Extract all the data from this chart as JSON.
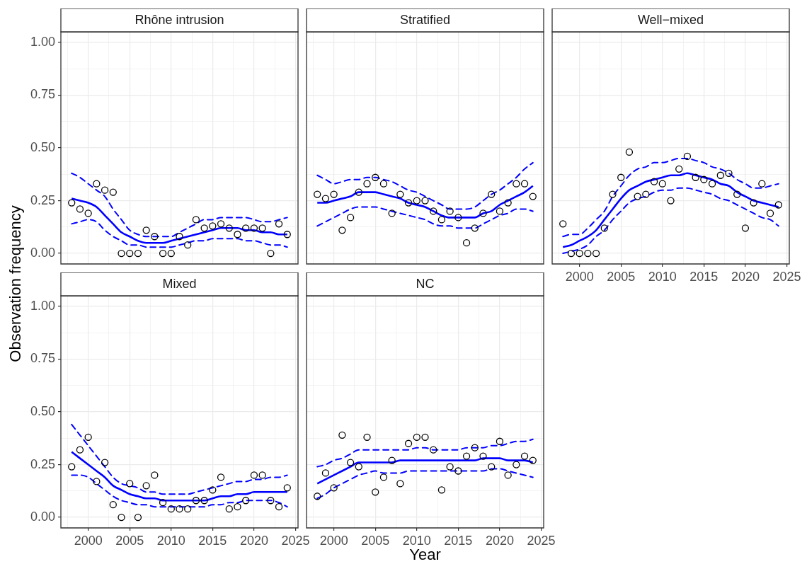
{
  "chart_data": [
    {
      "type": "scatter",
      "title": "Rhône intrusion",
      "ylabel": "Observation frequency",
      "x": [
        1998,
        1999,
        2000,
        2001,
        2002,
        2003,
        2004,
        2005,
        2006,
        2007,
        2008,
        2009,
        2010,
        2011,
        2012,
        2013,
        2014,
        2015,
        2016,
        2017,
        2018,
        2019,
        2020,
        2021,
        2022,
        2023,
        2024
      ],
      "series": [
        {
          "type": "scatter",
          "color": "#000000",
          "marker": "circle",
          "values": [
            0.24,
            0.21,
            0.19,
            0.33,
            0.3,
            0.29,
            0,
            0,
            0,
            0.11,
            0.08,
            0,
            0,
            0.08,
            0.04,
            0.16,
            0.12,
            0.13,
            0.14,
            0.12,
            0.09,
            0.12,
            0.12,
            0.12,
            0,
            0.14,
            0.09
          ]
        },
        {
          "type": "line",
          "color": "#0000ff",
          "line_style": "solid",
          "values": [
            0.26,
            0.25,
            0.24,
            0.22,
            0.18,
            0.14,
            0.1,
            0.08,
            0.06,
            0.05,
            0.05,
            0.05,
            0.06,
            0.07,
            0.08,
            0.09,
            0.1,
            0.11,
            0.12,
            0.12,
            0.12,
            0.11,
            0.11,
            0.1,
            0.1,
            0.09,
            0.09
          ]
        },
        {
          "type": "line",
          "color": "#0000ff",
          "line_style": "dashed",
          "values": [
            0.38,
            0.36,
            0.33,
            0.3,
            0.27,
            0.21,
            0.16,
            0.11,
            0.09,
            0.08,
            0.08,
            0.08,
            0.08,
            0.1,
            0.12,
            0.14,
            0.16,
            0.16,
            0.17,
            0.17,
            0.17,
            0.17,
            0.16,
            0.15,
            0.15,
            0.16,
            0.17
          ]
        },
        {
          "type": "line",
          "color": "#0000ff",
          "line_style": "dashed",
          "values": [
            0.14,
            0.15,
            0.16,
            0.15,
            0.11,
            0.08,
            0.06,
            0.04,
            0.04,
            0.03,
            0.03,
            0.03,
            0.03,
            0.04,
            0.05,
            0.06,
            0.06,
            0.07,
            0.07,
            0.07,
            0.07,
            0.06,
            0.06,
            0.05,
            0.04,
            0.04,
            0.03
          ]
        }
      ],
      "xlim": [
        1996.7,
        2025.3
      ],
      "ylim": [
        -0.05,
        1.05
      ],
      "xticks": [
        {
          "value": 1997.5,
          "label": null
        },
        2000,
        {
          "value": 2002.5,
          "label": null
        },
        2005,
        {
          "value": 2007.5,
          "label": null
        },
        2010,
        {
          "value": 2012.5,
          "label": null
        },
        2015,
        {
          "value": 2017.5,
          "label": null
        },
        2020,
        {
          "value": 2022.5,
          "label": null
        },
        2025
      ],
      "yticks": [
        {
          "value": 0,
          "label": "0.00"
        },
        {
          "value": 0.125,
          "label": null
        },
        0.25,
        {
          "value": 0.375,
          "label": null
        },
        {
          "value": 0.5,
          "label": "0.50"
        },
        {
          "value": 0.625,
          "label": null
        },
        0.75,
        {
          "value": 0.875,
          "label": null
        },
        {
          "value": 1,
          "label": "1.00"
        }
      ],
      "grid": true,
      "tick_labels": "y"
    },
    {
      "type": "scatter",
      "title": "Stratified",
      "x": [
        1998,
        1999,
        2000,
        2001,
        2002,
        2003,
        2004,
        2005,
        2006,
        2007,
        2008,
        2009,
        2010,
        2011,
        2012,
        2013,
        2014,
        2015,
        2016,
        2017,
        2018,
        2019,
        2020,
        2021,
        2022,
        2023,
        2024
      ],
      "series": [
        {
          "type": "scatter",
          "color": "#000000",
          "marker": "circle",
          "values": [
            0.28,
            0.26,
            0.28,
            0.11,
            0.17,
            0.29,
            0.33,
            0.36,
            0.33,
            0.19,
            0.28,
            0.24,
            0.25,
            0.25,
            0.2,
            0.16,
            0.2,
            0.17,
            0.05,
            0.12,
            0.19,
            0.28,
            0.2,
            0.24,
            0.33,
            0.33,
            0.27
          ]
        },
        {
          "type": "line",
          "color": "#0000ff",
          "line_style": "solid",
          "values": [
            0.24,
            0.24,
            0.25,
            0.26,
            0.27,
            0.29,
            0.29,
            0.29,
            0.28,
            0.27,
            0.26,
            0.24,
            0.23,
            0.22,
            0.2,
            0.18,
            0.17,
            0.17,
            0.17,
            0.17,
            0.19,
            0.2,
            0.23,
            0.25,
            0.27,
            0.29,
            0.32
          ]
        },
        {
          "type": "line",
          "color": "#0000ff",
          "line_style": "dashed",
          "values": [
            0.37,
            0.35,
            0.33,
            0.34,
            0.35,
            0.35,
            0.36,
            0.36,
            0.35,
            0.34,
            0.32,
            0.3,
            0.29,
            0.27,
            0.25,
            0.23,
            0.21,
            0.21,
            0.21,
            0.22,
            0.25,
            0.28,
            0.3,
            0.33,
            0.36,
            0.4,
            0.43
          ]
        },
        {
          "type": "line",
          "color": "#0000ff",
          "line_style": "dashed",
          "values": [
            0.13,
            0.15,
            0.17,
            0.19,
            0.21,
            0.22,
            0.22,
            0.22,
            0.21,
            0.2,
            0.19,
            0.18,
            0.17,
            0.16,
            0.14,
            0.13,
            0.13,
            0.12,
            0.12,
            0.12,
            0.14,
            0.16,
            0.18,
            0.19,
            0.21,
            0.21,
            0.2
          ]
        }
      ],
      "xlim": [
        1996.7,
        2025.3
      ],
      "ylim": [
        -0.05,
        1.05
      ],
      "xticks": [
        {
          "value": 1997.5,
          "label": null
        },
        2000,
        {
          "value": 2002.5,
          "label": null
        },
        2005,
        {
          "value": 2007.5,
          "label": null
        },
        2010,
        {
          "value": 2012.5,
          "label": null
        },
        2015,
        {
          "value": 2017.5,
          "label": null
        },
        2020,
        {
          "value": 2022.5,
          "label": null
        },
        2025
      ],
      "yticks": [
        0,
        {
          "value": 0.125,
          "label": null
        },
        0.25,
        {
          "value": 0.375,
          "label": null
        },
        0.5,
        {
          "value": 0.625,
          "label": null
        },
        0.75,
        {
          "value": 0.875,
          "label": null
        },
        1
      ],
      "grid": true,
      "tick_labels": false
    },
    {
      "type": "scatter",
      "title": "Well−mixed",
      "x": [
        1998,
        1999,
        2000,
        2001,
        2002,
        2003,
        2004,
        2005,
        2006,
        2007,
        2008,
        2009,
        2010,
        2011,
        2012,
        2013,
        2014,
        2015,
        2016,
        2017,
        2018,
        2019,
        2020,
        2021,
        2022,
        2023,
        2024
      ],
      "series": [
        {
          "type": "scatter",
          "color": "#000000",
          "marker": "circle",
          "values": [
            0.14,
            0,
            0,
            0,
            0,
            0.12,
            0.28,
            0.36,
            0.48,
            0.27,
            0.28,
            0.34,
            0.33,
            0.25,
            0.4,
            0.46,
            0.36,
            0.35,
            0.33,
            0.37,
            0.38,
            0.28,
            0.12,
            0.24,
            0.33,
            0.19,
            0.23
          ]
        },
        {
          "type": "line",
          "color": "#0000ff",
          "line_style": "solid",
          "values": [
            0.03,
            0.04,
            0.06,
            0.08,
            0.11,
            0.16,
            0.21,
            0.26,
            0.3,
            0.32,
            0.34,
            0.35,
            0.36,
            0.37,
            0.37,
            0.38,
            0.37,
            0.36,
            0.35,
            0.33,
            0.32,
            0.29,
            0.27,
            0.25,
            0.24,
            0.23,
            0.22
          ]
        },
        {
          "type": "line",
          "color": "#0000ff",
          "line_style": "dashed",
          "values": [
            0.08,
            0.09,
            0.09,
            0.12,
            0.16,
            0.2,
            0.27,
            0.32,
            0.37,
            0.4,
            0.41,
            0.43,
            0.43,
            0.44,
            0.45,
            0.45,
            0.44,
            0.43,
            0.41,
            0.4,
            0.38,
            0.35,
            0.33,
            0.31,
            0.31,
            0.32,
            0.33
          ]
        },
        {
          "type": "line",
          "color": "#0000ff",
          "line_style": "dashed",
          "values": [
            0.0,
            0.01,
            0.02,
            0.04,
            0.08,
            0.11,
            0.16,
            0.2,
            0.24,
            0.26,
            0.27,
            0.29,
            0.3,
            0.3,
            0.31,
            0.31,
            0.3,
            0.29,
            0.28,
            0.26,
            0.25,
            0.23,
            0.21,
            0.19,
            0.17,
            0.16,
            0.13
          ]
        }
      ],
      "xlim": [
        1996.7,
        2025.3
      ],
      "ylim": [
        -0.05,
        1.05
      ],
      "xticks": [
        {
          "value": 1997.5,
          "label": null
        },
        2000,
        {
          "value": 2002.5,
          "label": null
        },
        2005,
        {
          "value": 2007.5,
          "label": null
        },
        2010,
        {
          "value": 2012.5,
          "label": null
        },
        2015,
        {
          "value": 2017.5,
          "label": null
        },
        2020,
        {
          "value": 2022.5,
          "label": null
        },
        2025
      ],
      "yticks": [
        0,
        {
          "value": 0.125,
          "label": null
        },
        0.25,
        {
          "value": 0.375,
          "label": null
        },
        0.5,
        {
          "value": 0.625,
          "label": null
        },
        0.75,
        {
          "value": 0.875,
          "label": null
        },
        1
      ],
      "grid": true,
      "tick_labels": "x"
    },
    {
      "type": "scatter",
      "title": "Mixed",
      "x": [
        1998,
        1999,
        2000,
        2001,
        2002,
        2003,
        2004,
        2005,
        2006,
        2007,
        2008,
        2009,
        2010,
        2011,
        2012,
        2013,
        2014,
        2015,
        2016,
        2017,
        2018,
        2019,
        2020,
        2021,
        2022,
        2023,
        2024
      ],
      "series": [
        {
          "type": "scatter",
          "color": "#000000",
          "marker": "circle",
          "values": [
            0.24,
            0.32,
            0.38,
            0.17,
            0.26,
            0.06,
            0,
            0.16,
            0,
            0.15,
            0.2,
            0.07,
            0.04,
            0.04,
            0.04,
            0.08,
            0.08,
            0.13,
            0.19,
            0.04,
            0.05,
            0.08,
            0.2,
            0.2,
            0.08,
            0.05,
            0.14
          ]
        },
        {
          "type": "line",
          "color": "#0000ff",
          "line_style": "solid",
          "values": [
            0.31,
            0.28,
            0.25,
            0.22,
            0.19,
            0.15,
            0.13,
            0.11,
            0.1,
            0.09,
            0.09,
            0.08,
            0.08,
            0.08,
            0.08,
            0.08,
            0.08,
            0.09,
            0.1,
            0.1,
            0.11,
            0.11,
            0.12,
            0.12,
            0.12,
            0.12,
            0.12
          ]
        },
        {
          "type": "line",
          "color": "#0000ff",
          "line_style": "dashed",
          "values": [
            0.44,
            0.39,
            0.34,
            0.29,
            0.24,
            0.19,
            0.16,
            0.15,
            0.14,
            0.12,
            0.12,
            0.11,
            0.11,
            0.11,
            0.11,
            0.12,
            0.13,
            0.14,
            0.15,
            0.16,
            0.17,
            0.17,
            0.18,
            0.18,
            0.19,
            0.19,
            0.2
          ]
        },
        {
          "type": "line",
          "color": "#0000ff",
          "line_style": "dashed",
          "values": [
            0.2,
            0.2,
            0.19,
            0.16,
            0.13,
            0.1,
            0.08,
            0.07,
            0.06,
            0.06,
            0.05,
            0.05,
            0.05,
            0.05,
            0.05,
            0.05,
            0.05,
            0.06,
            0.06,
            0.07,
            0.07,
            0.08,
            0.08,
            0.08,
            0.08,
            0.07,
            0.05
          ]
        }
      ],
      "xlim": [
        1996.7,
        2025.3
      ],
      "ylim": [
        -0.05,
        1.05
      ],
      "xticks": [
        {
          "value": 1997.5,
          "label": null
        },
        2000,
        {
          "value": 2002.5,
          "label": null
        },
        2005,
        {
          "value": 2007.5,
          "label": null
        },
        2010,
        {
          "value": 2012.5,
          "label": null
        },
        2015,
        {
          "value": 2017.5,
          "label": null
        },
        2020,
        {
          "value": 2022.5,
          "label": null
        },
        2025
      ],
      "yticks": [
        {
          "value": 0,
          "label": "0.00"
        },
        {
          "value": 0.125,
          "label": null
        },
        0.25,
        {
          "value": 0.375,
          "label": null
        },
        {
          "value": 0.5,
          "label": "0.50"
        },
        {
          "value": 0.625,
          "label": null
        },
        0.75,
        {
          "value": 0.875,
          "label": null
        },
        {
          "value": 1,
          "label": "1.00"
        }
      ],
      "grid": true
    },
    {
      "type": "scatter",
      "title": "NC",
      "xlabel": "Year",
      "x": [
        1998,
        1999,
        2000,
        2001,
        2002,
        2003,
        2004,
        2005,
        2006,
        2007,
        2008,
        2009,
        2010,
        2011,
        2012,
        2013,
        2014,
        2015,
        2016,
        2017,
        2018,
        2019,
        2020,
        2021,
        2022,
        2023,
        2024
      ],
      "series": [
        {
          "type": "scatter",
          "color": "#000000",
          "marker": "circle",
          "values": [
            0.1,
            0.21,
            0.14,
            0.39,
            0.26,
            0.24,
            0.38,
            0.12,
            0.19,
            0.27,
            0.16,
            0.35,
            0.38,
            0.38,
            0.32,
            0.13,
            0.24,
            0.22,
            0.29,
            0.33,
            0.29,
            0.24,
            0.36,
            0.2,
            0.25,
            0.29,
            0.27
          ]
        },
        {
          "type": "line",
          "color": "#0000ff",
          "line_style": "solid",
          "values": [
            0.16,
            0.18,
            0.2,
            0.22,
            0.24,
            0.26,
            0.26,
            0.26,
            0.26,
            0.26,
            0.27,
            0.27,
            0.27,
            0.27,
            0.27,
            0.27,
            0.27,
            0.27,
            0.27,
            0.27,
            0.28,
            0.28,
            0.28,
            0.27,
            0.27,
            0.27,
            0.26
          ]
        },
        {
          "type": "line",
          "color": "#0000ff",
          "line_style": "dashed",
          "values": [
            0.24,
            0.25,
            0.27,
            0.28,
            0.3,
            0.32,
            0.32,
            0.32,
            0.32,
            0.32,
            0.32,
            0.32,
            0.33,
            0.33,
            0.32,
            0.32,
            0.32,
            0.32,
            0.33,
            0.33,
            0.33,
            0.34,
            0.34,
            0.35,
            0.36,
            0.36,
            0.37
          ]
        },
        {
          "type": "line",
          "color": "#0000ff",
          "line_style": "dashed",
          "values": [
            0.09,
            0.11,
            0.14,
            0.16,
            0.18,
            0.2,
            0.21,
            0.22,
            0.21,
            0.21,
            0.21,
            0.22,
            0.22,
            0.22,
            0.22,
            0.22,
            0.22,
            0.22,
            0.22,
            0.22,
            0.22,
            0.23,
            0.23,
            0.22,
            0.21,
            0.2,
            0.19
          ]
        }
      ],
      "xlim": [
        1996.7,
        2025.3
      ],
      "ylim": [
        -0.05,
        1.05
      ],
      "xticks": [
        {
          "value": 1997.5,
          "label": null
        },
        2000,
        {
          "value": 2002.5,
          "label": null
        },
        2005,
        {
          "value": 2007.5,
          "label": null
        },
        2010,
        {
          "value": 2012.5,
          "label": null
        },
        2015,
        {
          "value": 2017.5,
          "label": null
        },
        2020,
        {
          "value": 2022.5,
          "label": null
        },
        2025
      ],
      "yticks": [
        0,
        {
          "value": 0.125,
          "label": null
        },
        0.25,
        {
          "value": 0.375,
          "label": null
        },
        0.5,
        {
          "value": 0.625,
          "label": null
        },
        0.75,
        {
          "value": 0.875,
          "label": null
        },
        1
      ],
      "grid": true,
      "tick_labels": "x"
    }
  ]
}
